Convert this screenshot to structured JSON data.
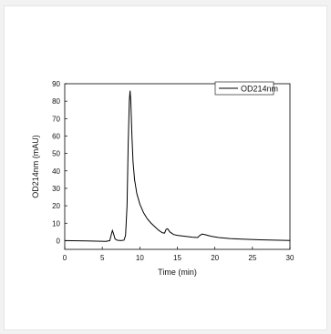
{
  "chart_data": {
    "type": "line",
    "title": "",
    "xlabel": "Time (min)",
    "ylabel": "OD214nm (mAU)",
    "xlim": [
      0,
      30
    ],
    "ylim": [
      -5,
      90
    ],
    "x_ticks": [
      0,
      5,
      10,
      15,
      20,
      25,
      30
    ],
    "y_ticks": [
      0,
      10,
      20,
      30,
      40,
      50,
      60,
      70,
      80,
      90
    ],
    "grid": false,
    "legend": {
      "position": "top-right",
      "entries": [
        "OD214nm"
      ]
    },
    "series": [
      {
        "name": "OD214nm",
        "color": "#000000",
        "points": [
          [
            0,
            0.0
          ],
          [
            3,
            -0.2
          ],
          [
            5.5,
            -0.4
          ],
          [
            6.0,
            0.0
          ],
          [
            6.2,
            3.5
          ],
          [
            6.35,
            5.8
          ],
          [
            6.5,
            4.0
          ],
          [
            6.7,
            1.0
          ],
          [
            7.0,
            0.2
          ],
          [
            7.5,
            0.0
          ],
          [
            7.9,
            0.3
          ],
          [
            8.1,
            3.0
          ],
          [
            8.3,
            20.0
          ],
          [
            8.45,
            55.0
          ],
          [
            8.6,
            80.0
          ],
          [
            8.7,
            86.0
          ],
          [
            8.8,
            80.0
          ],
          [
            8.95,
            60.0
          ],
          [
            9.1,
            45.0
          ],
          [
            9.3,
            35.0
          ],
          [
            9.6,
            27.0
          ],
          [
            10.0,
            21.0
          ],
          [
            10.5,
            16.0
          ],
          [
            11.0,
            12.5
          ],
          [
            11.5,
            10.0
          ],
          [
            12.0,
            8.0
          ],
          [
            12.5,
            6.0
          ],
          [
            13.0,
            4.5
          ],
          [
            13.3,
            4.3
          ],
          [
            13.5,
            6.5
          ],
          [
            13.7,
            6.8
          ],
          [
            14.0,
            5.0
          ],
          [
            14.5,
            3.5
          ],
          [
            15.0,
            3.0
          ],
          [
            16.0,
            2.5
          ],
          [
            17.0,
            2.0
          ],
          [
            17.7,
            1.8
          ],
          [
            18.0,
            3.0
          ],
          [
            18.3,
            3.8
          ],
          [
            18.7,
            3.4
          ],
          [
            19.5,
            2.5
          ],
          [
            20.5,
            1.8
          ],
          [
            22.0,
            1.2
          ],
          [
            24.0,
            0.8
          ],
          [
            26.0,
            0.5
          ],
          [
            28.0,
            0.3
          ],
          [
            30.0,
            0.1
          ]
        ]
      }
    ]
  }
}
